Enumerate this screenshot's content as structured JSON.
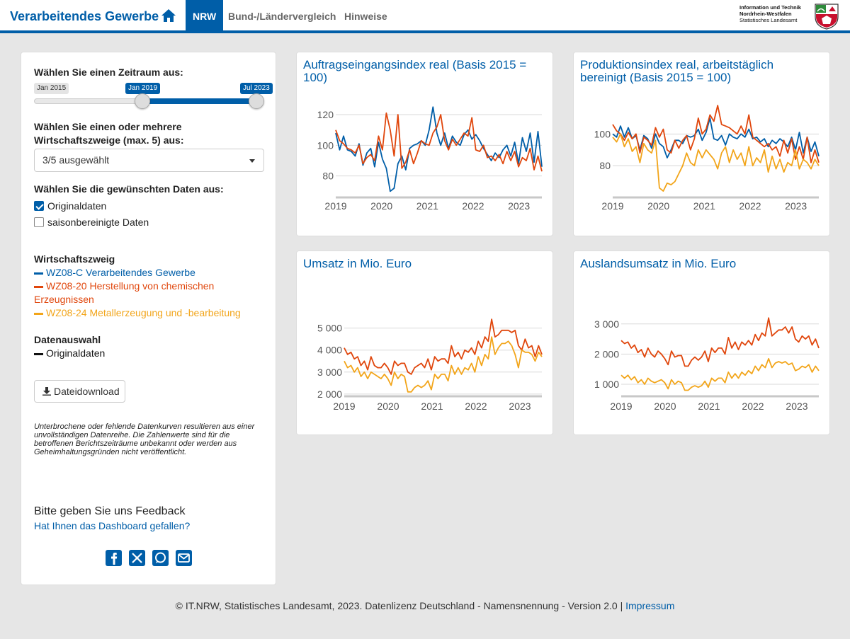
{
  "header": {
    "brand": "Verarbeitendes Gewerbe",
    "tabs": [
      {
        "label": "NRW",
        "active": true
      },
      {
        "label": "Bund-/Ländervergleich",
        "active": false
      },
      {
        "label": "Hinweise",
        "active": false
      }
    ],
    "logo_lines": [
      "Information und Technik",
      "Nordrhein-Westfalen",
      "Statistisches Landesamt"
    ]
  },
  "sidebar": {
    "period_label": "Wählen Sie einen Zeitraum aus:",
    "slider": {
      "min_label": "Jan 2015",
      "from": "Jan 2019",
      "to": "Jul 2023"
    },
    "sector_label": "Wählen Sie einen oder mehrere Wirtschaftszweige (max. 5) aus:",
    "sector_select_value": "3/5 ausgewählt",
    "data_label": "Wählen Sie die gewünschten Daten aus:",
    "checkboxes": [
      {
        "label": "Originaldaten",
        "checked": true
      },
      {
        "label": "saisonbereinigte Daten",
        "checked": false
      }
    ],
    "legend_title": "Wirtschaftszweig",
    "legend_items": [
      {
        "label": "WZ08-C Verarbeitendes Gewerbe",
        "color": "#005ea8"
      },
      {
        "label": "WZ08-20 Herstellung von chemischen Erzeugnissen",
        "color": "#e0460c"
      },
      {
        "label": "WZ08-24 Metallerzeugung und -bearbeitung",
        "color": "#f2a51a"
      }
    ],
    "data_selection_title": "Datenauswahl",
    "data_selection_item": "Originaldaten",
    "download_label": "Dateidownload",
    "note": "Unterbrochene oder fehlende Datenkurven resultieren aus einer unvollständigen Datenreihe. Die Zahlenwerte sind für die betroffenen Berichtszeiträume unbekannt oder werden aus Geheimhaltungsgründen nicht veröffentlicht.",
    "feedback_title": "Bitte geben Sie uns Feedback",
    "feedback_link": "Hat Ihnen das Dashboard gefallen?",
    "social_icons": [
      "facebook-icon",
      "x-icon",
      "whatsapp-icon",
      "mail-icon"
    ]
  },
  "footer": {
    "text": "© IT.NRW, Statistisches Landesamt, 2023. Datenlizenz Deutschland - Namensnennung - Version 2.0 |",
    "link": "Impressum"
  },
  "colors": {
    "blue": "#005ea8",
    "red": "#e0460c",
    "yellow": "#f2a51a"
  },
  "chart_data": [
    {
      "type": "line",
      "title": "Auftragseingangsindex real (Basis 2015 = 100)",
      "x_labels": [
        "2019",
        "2020",
        "2021",
        "2022",
        "2023"
      ],
      "y_ticks": [
        {
          "v": 80,
          "label": "80"
        },
        {
          "v": 100,
          "label": "100"
        },
        {
          "v": 120,
          "label": "120"
        }
      ],
      "ylim": [
        66,
        126
      ],
      "series": [
        {
          "name": "WZ08-C",
          "color": "#005ea8",
          "values": [
            108,
            97,
            106,
            97,
            96,
            93,
            101,
            87,
            95,
            98,
            86,
            102,
            91,
            85,
            70,
            72,
            88,
            93,
            84,
            98,
            100,
            101,
            103,
            100,
            110,
            125,
            108,
            100,
            108,
            98,
            106,
            102,
            100,
            107,
            110,
            104,
            107,
            103,
            98,
            94,
            90,
            95,
            92,
            97,
            100,
            93,
            102,
            88,
            105,
            96,
            108,
            89,
            109,
            86
          ]
        },
        {
          "name": "WZ08-20",
          "color": "#e0460c",
          "values": [
            110,
            103,
            101,
            98,
            97,
            95,
            100,
            88,
            92,
            94,
            90,
            106,
            97,
            121,
            110,
            93,
            120,
            85,
            89,
            97,
            88,
            95,
            103,
            101,
            100,
            108,
            112,
            120,
            103,
            97,
            104,
            100,
            104,
            108,
            106,
            118,
            97,
            96,
            100,
            92,
            93,
            90,
            94,
            88,
            96,
            90,
            96,
            86,
            92,
            90,
            98,
            84,
            93,
            83
          ]
        },
        {
          "name": "WZ08-24",
          "color": "#f2a51a",
          "values": []
        }
      ]
    },
    {
      "type": "line",
      "title": "Produktionsindex real, arbeitstäglich bereinigt (Basis 2015 = 100)",
      "x_labels": [
        "2019",
        "2020",
        "2021",
        "2022",
        "2023"
      ],
      "y_ticks": [
        {
          "v": 80,
          "label": "80"
        },
        {
          "v": 100,
          "label": "100"
        }
      ],
      "ylim": [
        60,
        118
      ],
      "series": [
        {
          "name": "WZ08-C",
          "color": "#005ea8",
          "values": [
            100,
            98,
            105,
            98,
            104,
            97,
            99,
            90,
            99,
            97,
            91,
            100,
            94,
            92,
            85,
            90,
            96,
            96,
            94,
            99,
            98,
            99,
            103,
            96,
            101,
            110,
            97,
            96,
            99,
            93,
            100,
            98,
            97,
            100,
            98,
            103,
            97,
            98,
            95,
            97,
            92,
            96,
            94,
            97,
            95,
            92,
            98,
            90,
            101,
            88,
            98,
            89,
            95,
            86
          ]
        },
        {
          "name": "WZ08-20",
          "color": "#e0460c",
          "values": [
            106,
            102,
            100,
            96,
            101,
            97,
            100,
            88,
            98,
            96,
            93,
            104,
            98,
            103,
            90,
            88,
            96,
            91,
            96,
            99,
            90,
            97,
            110,
            100,
            103,
            112,
            108,
            118,
            106,
            105,
            104,
            102,
            100,
            105,
            100,
            112,
            98,
            96,
            94,
            92,
            94,
            90,
            92,
            86,
            96,
            88,
            97,
            84,
            92,
            84,
            98,
            82,
            90,
            82
          ]
        },
        {
          "name": "WZ08-24",
          "color": "#f2a51a",
          "values": [
            98,
            95,
            100,
            92,
            97,
            89,
            92,
            82,
            94,
            90,
            88,
            96,
            66,
            64,
            69,
            68,
            70,
            75,
            80,
            88,
            82,
            80,
            90,
            85,
            90,
            87,
            84,
            78,
            88,
            92,
            82,
            90,
            84,
            88,
            80,
            92,
            80,
            85,
            82,
            90,
            76,
            86,
            78,
            84,
            76,
            82,
            80,
            90,
            78,
            84,
            82,
            78,
            84,
            80
          ]
        }
      ]
    },
    {
      "type": "line",
      "title": "Umsatz in Mio. Euro",
      "x_labels": [
        "2019",
        "2020",
        "2021",
        "2022",
        "2023"
      ],
      "y_ticks": [
        {
          "v": 2000,
          "label": "2 000"
        },
        {
          "v": 3000,
          "label": "3 000"
        },
        {
          "v": 4000,
          "label": "4 000"
        },
        {
          "v": 5000,
          "label": "5 000"
        }
      ],
      "ylim": [
        1900,
        5600
      ],
      "series": [
        {
          "name": "WZ08-C",
          "color": "#005ea8",
          "values": []
        },
        {
          "name": "WZ08-20",
          "color": "#e0460c",
          "values": [
            4100,
            3800,
            3900,
            3600,
            3700,
            3300,
            3500,
            3100,
            3700,
            3300,
            3200,
            3200,
            3400,
            3200,
            2900,
            3500,
            3300,
            3400,
            3400,
            3000,
            2900,
            3200,
            3300,
            3400,
            3200,
            3600,
            3100,
            3700,
            3500,
            3600,
            3600,
            3400,
            4200,
            3700,
            3900,
            3600,
            4000,
            3900,
            4100,
            3800,
            4400,
            4100,
            4600,
            4400,
            5400,
            4600,
            4700,
            4900,
            4900,
            4900,
            4800,
            4900,
            4200,
            4000,
            4500,
            4100,
            4200,
            3700,
            4200,
            3800
          ]
        },
        {
          "name": "WZ08-24",
          "color": "#f2a51a",
          "values": [
            3500,
            3200,
            3300,
            3000,
            3200,
            2800,
            3000,
            2700,
            3000,
            2900,
            2800,
            2700,
            2900,
            2700,
            2400,
            3000,
            2700,
            2900,
            2800,
            2100,
            2100,
            2300,
            2400,
            2300,
            2400,
            2600,
            2200,
            2900,
            2700,
            2900,
            2900,
            2600,
            3300,
            2900,
            3200,
            2900,
            3200,
            3100,
            3400,
            3000,
            3700,
            3300,
            3800,
            3600,
            4600,
            3800,
            4100,
            4300,
            4300,
            4400,
            4200,
            3800,
            3200,
            4000,
            3900,
            3900,
            3800,
            3500,
            3900,
            3700
          ]
        }
      ]
    },
    {
      "type": "line",
      "title": "Auslandsumsatz in Mio. Euro",
      "x_labels": [
        "2019",
        "2020",
        "2021",
        "2022",
        "2023"
      ],
      "y_ticks": [
        {
          "v": 1000,
          "label": "1 000"
        },
        {
          "v": 2000,
          "label": "2 000"
        },
        {
          "v": 3000,
          "label": "3 000"
        }
      ],
      "ylim": [
        600,
        3300
      ],
      "series": [
        {
          "name": "WZ08-C",
          "color": "#005ea8",
          "values": []
        },
        {
          "name": "WZ08-20",
          "color": "#e0460c",
          "values": [
            2450,
            2350,
            2400,
            2200,
            2300,
            2050,
            2150,
            1900,
            2200,
            2000,
            1900,
            2100,
            2000,
            1850,
            1650,
            2100,
            1900,
            1950,
            1950,
            1600,
            1600,
            1800,
            1900,
            1800,
            1900,
            2100,
            1750,
            2200,
            2050,
            2200,
            2200,
            2000,
            2550,
            2200,
            2400,
            2150,
            2400,
            2300,
            2450,
            2300,
            2650,
            2450,
            2700,
            2600,
            3200,
            2600,
            2700,
            2800,
            2800,
            2900,
            2700,
            2900,
            2500,
            2400,
            2600,
            2500,
            2600,
            2300,
            2500,
            2200
          ]
        },
        {
          "name": "WZ08-24",
          "color": "#f2a51a",
          "values": [
            1300,
            1200,
            1300,
            1150,
            1250,
            1050,
            1150,
            1000,
            1200,
            1100,
            1050,
            1100,
            1150,
            1050,
            850,
            1150,
            1000,
            1100,
            1050,
            800,
            800,
            900,
            950,
            900,
            950,
            1100,
            900,
            1200,
            1100,
            1200,
            1200,
            1050,
            1400,
            1200,
            1350,
            1200,
            1400,
            1300,
            1450,
            1350,
            1600,
            1450,
            1650,
            1550,
            1850,
            1550,
            1700,
            1750,
            1700,
            1750,
            1650,
            1700,
            1450,
            1500,
            1600,
            1550,
            1650,
            1400,
            1600,
            1450
          ]
        }
      ]
    }
  ]
}
